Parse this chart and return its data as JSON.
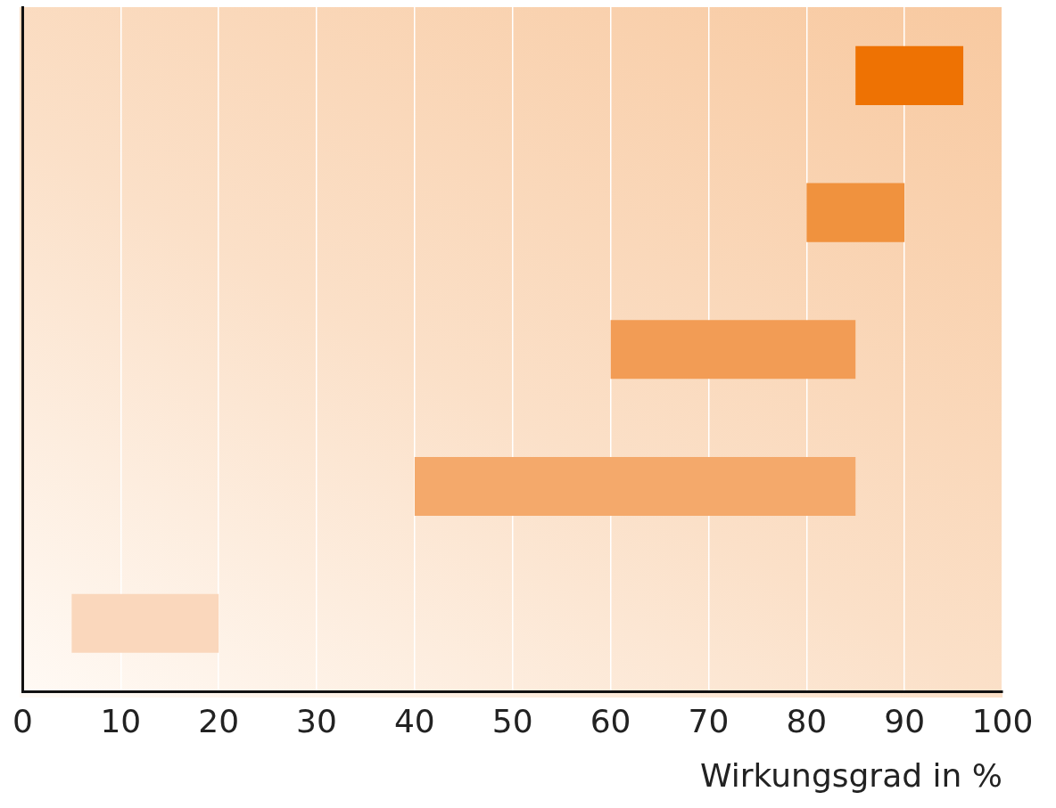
{
  "chart_data": {
    "type": "bar",
    "orientation": "horizontal",
    "xlabel": "Wirkungsgrad in %",
    "categories": [
      null,
      null,
      null,
      null,
      null
    ],
    "values": [
      11,
      10,
      25,
      45,
      15
    ],
    "base": [
      85,
      80,
      60,
      40,
      5
    ],
    "colors": [
      "#ee7203",
      "#f0923e",
      "#f29c55",
      "#f4a96b",
      "#fad7bc"
    ],
    "xlim": [
      0,
      100
    ],
    "xticks": [
      0,
      10,
      20,
      30,
      40,
      50,
      60,
      70,
      80,
      90,
      100
    ],
    "grid": "x",
    "legend": false,
    "tick_labels": "x"
  }
}
